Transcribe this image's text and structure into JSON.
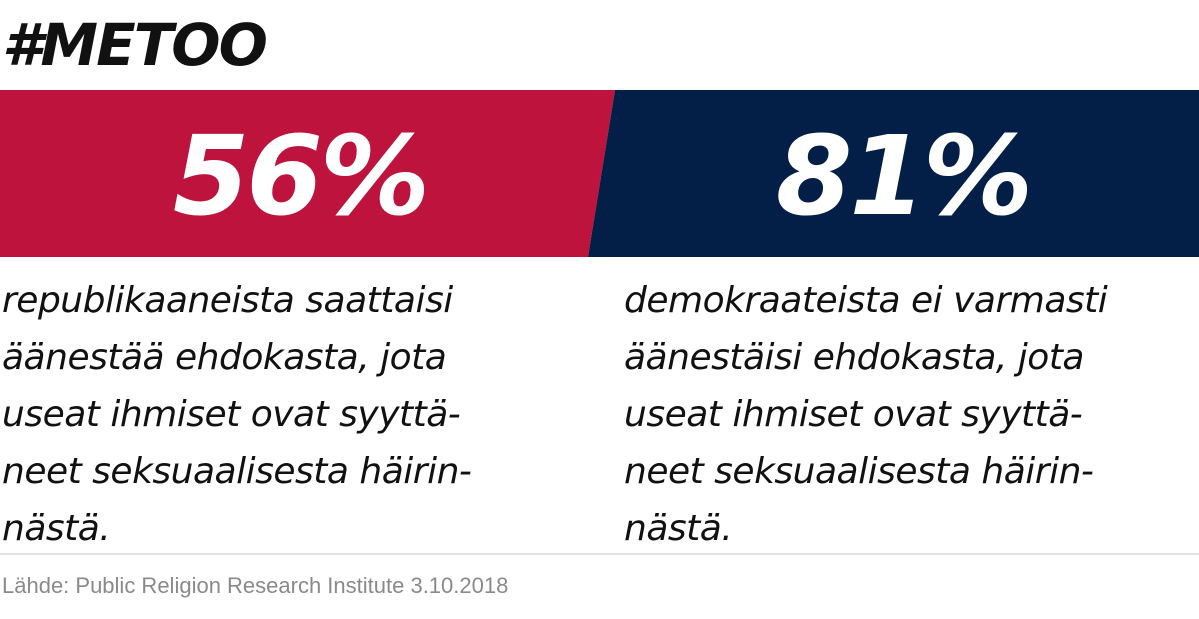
{
  "title": "#METOO",
  "colors": {
    "republicans": "#bd133c",
    "democrats": "#031f47"
  },
  "chart_data": {
    "type": "bar",
    "categories": [
      "republikaaneista",
      "demokraateista"
    ],
    "values": [
      56,
      81
    ],
    "value_labels": [
      "56%",
      "81%"
    ]
  },
  "left": {
    "stat": "56%",
    "lines": [
      "republikaaneista saattaisi",
      "äänestää ehdokasta, jota",
      "useat ihmiset ovat syyttä-",
      "neet seksuaalisesta häirin-",
      "nästä."
    ]
  },
  "right": {
    "stat": "81%",
    "lines": [
      "demokraateista ei varmasti",
      "äänestäisi ehdokasta, jota",
      "useat ihmiset ovat syyttä-",
      "neet seksuaalisesta häirin-",
      "nästä."
    ]
  },
  "source": "Lähde: Public Religion Research Institute 3.10.2018"
}
